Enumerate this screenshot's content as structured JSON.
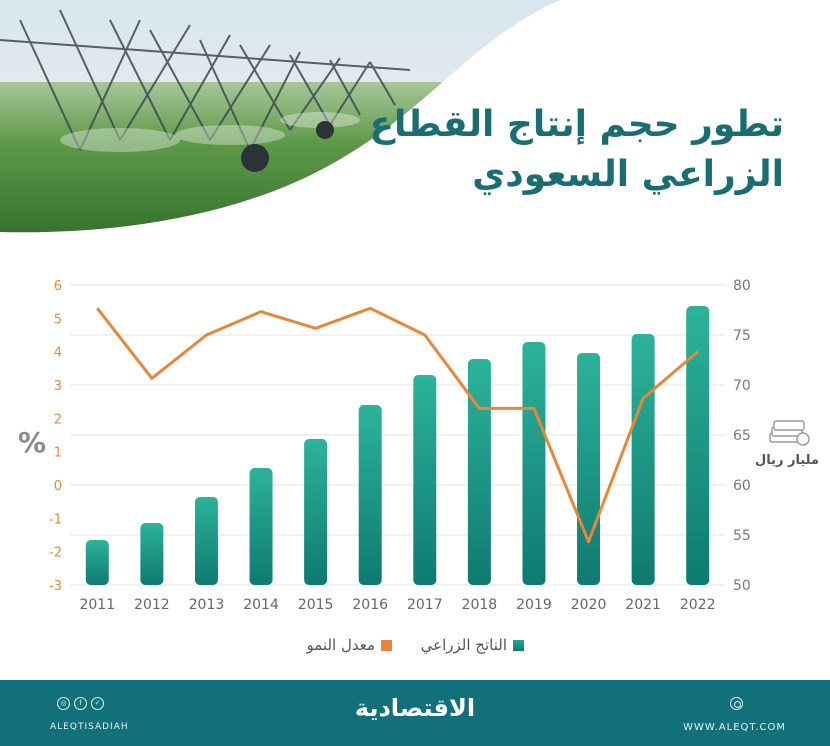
{
  "title": {
    "line1": "تطور حجم إنتاج القطاع",
    "line2": "الزراعي السعودي"
  },
  "chart_data": {
    "type": "bar",
    "categories": [
      "2011",
      "2012",
      "2013",
      "2014",
      "2015",
      "2016",
      "2017",
      "2018",
      "2019",
      "2020",
      "2021",
      "2022"
    ],
    "series": [
      {
        "name": "الناتج الزراعي",
        "type": "bar",
        "axis": "right",
        "color": "#1e9e8a",
        "values": [
          54.5,
          56.2,
          58.8,
          61.7,
          64.6,
          68.0,
          71.0,
          72.6,
          74.3,
          73.2,
          75.1,
          77.9
        ]
      },
      {
        "name": "معدل النمو",
        "type": "line",
        "axis": "left",
        "color": "#e8873a",
        "values": [
          5.3,
          3.2,
          4.5,
          5.2,
          4.7,
          5.3,
          4.5,
          2.3,
          2.3,
          -1.7,
          2.6,
          4.0
        ]
      }
    ],
    "left_axis": {
      "label": "%",
      "ticks": [
        "6",
        "5",
        "4",
        "3",
        "2",
        "1",
        "0",
        "-1",
        "-2",
        "-3"
      ],
      "tick_values": [
        6,
        5,
        4,
        3,
        2,
        1,
        0,
        -1,
        -2,
        -3
      ],
      "range": [
        -3,
        6
      ]
    },
    "right_axis": {
      "label": "مليار ريال",
      "ticks": [
        "80",
        "75",
        "70",
        "65",
        "60",
        "55",
        "50"
      ],
      "tick_values": [
        80,
        75,
        70,
        65,
        60,
        55,
        50
      ],
      "range": [
        50,
        80
      ]
    },
    "grid": true,
    "legend_position": "bottom"
  },
  "colors": {
    "accent": "#12707a",
    "bar": "#1e9e8a",
    "line": "#e8873a",
    "title": "#1a6e72"
  },
  "footer": {
    "brand": "الاقتصادية",
    "handle": "ALEQTISADIAH",
    "website": "WWW.ALEQT.COM",
    "social_icons": [
      "instagram-icon",
      "facebook-icon",
      "twitter-icon"
    ]
  },
  "icons": {
    "money": "money-stack-icon",
    "web": "globe-icon"
  }
}
